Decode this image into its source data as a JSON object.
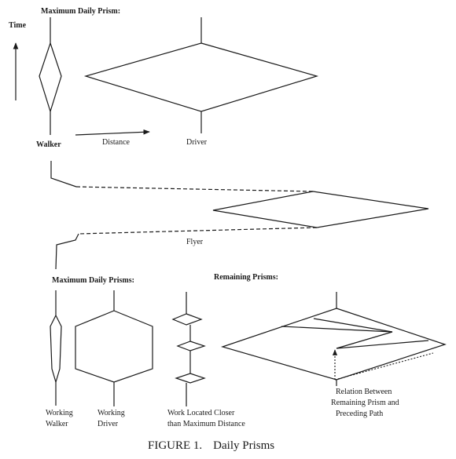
{
  "labels": {
    "top_heading": "Maximum Daily Prism:",
    "time_axis": "Time",
    "distance_axis": "Distance",
    "walker": "Walker",
    "driver": "Driver",
    "flyer": "Flyer",
    "bottom_heading": "Maximum Daily Prisms:",
    "remaining_heading": "Remaining Prisms:",
    "working_walker": [
      "Working",
      "Walker"
    ],
    "working_driver": [
      "Working",
      "Driver"
    ],
    "work_closer": [
      "Work Located Closer",
      "than Maximum Distance"
    ],
    "relation": [
      "Relation Between",
      "Remaining Prism and",
      "Preceding Path"
    ]
  },
  "caption": {
    "figure": "FIGURE 1.",
    "title": "Daily Prisms"
  }
}
